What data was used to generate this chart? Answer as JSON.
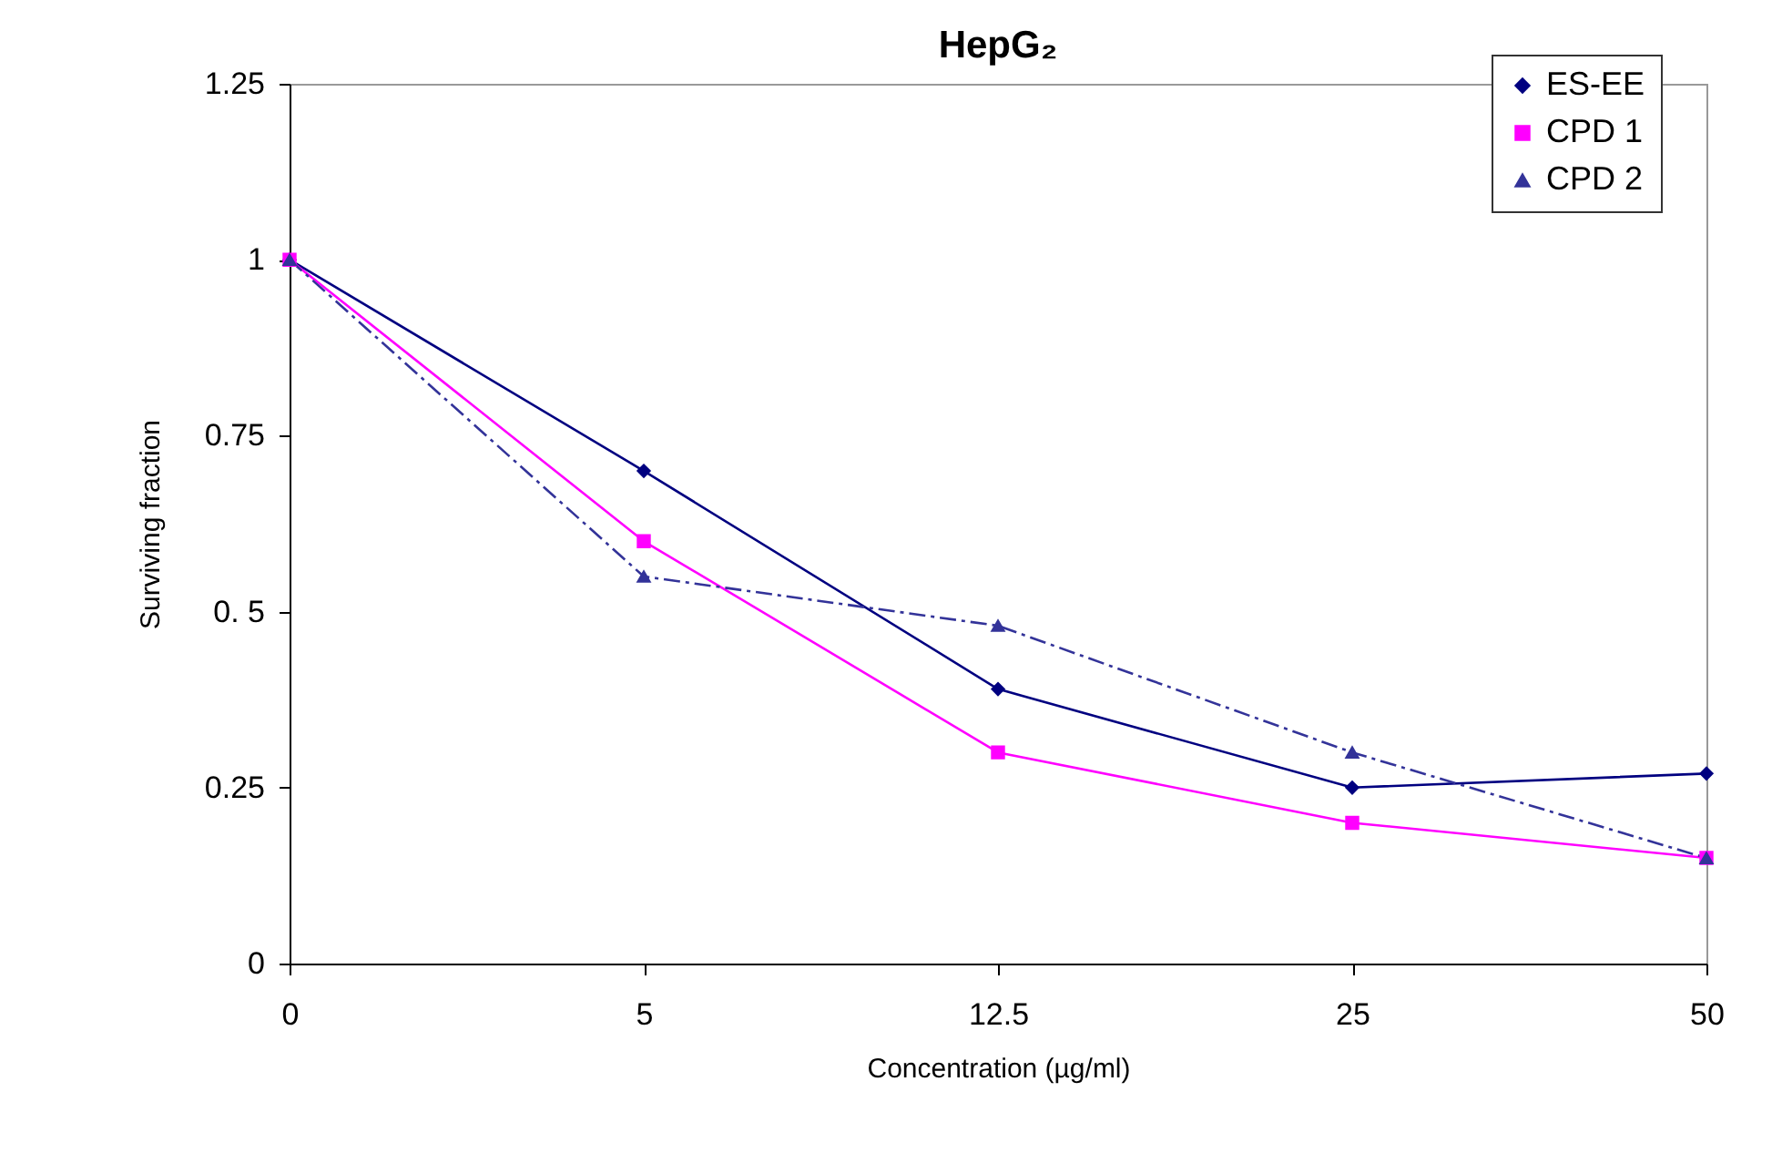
{
  "chart_data": {
    "type": "line",
    "title": "HepG₂",
    "xlabel": "Concentration (µg/ml)",
    "ylabel": "Surviving fraction",
    "categories": [
      "0",
      "5",
      "12.5",
      "25",
      "50"
    ],
    "series": [
      {
        "name": "ES-EE",
        "color": "#000080",
        "marker": "diamond",
        "line_style": "solid",
        "values": [
          1,
          0.7,
          0.39,
          0.25,
          0.27
        ]
      },
      {
        "name": "CPD 1",
        "color": "#ff00ff",
        "marker": "square",
        "line_style": "solid",
        "values": [
          1,
          0.6,
          0.3,
          0.2,
          0.15
        ]
      },
      {
        "name": "CPD 2",
        "color": "#333399",
        "marker": "triangle",
        "line_style": "dashed",
        "values": [
          1,
          0.55,
          0.48,
          0.3,
          0.15
        ]
      }
    ],
    "ylim": [
      0,
      1.25
    ],
    "yticks": [
      0,
      0.25,
      {
        "value": 0.5,
        "label": "0. 5"
      },
      0.75,
      1,
      1.25
    ],
    "grid": false,
    "legend": "top right"
  }
}
